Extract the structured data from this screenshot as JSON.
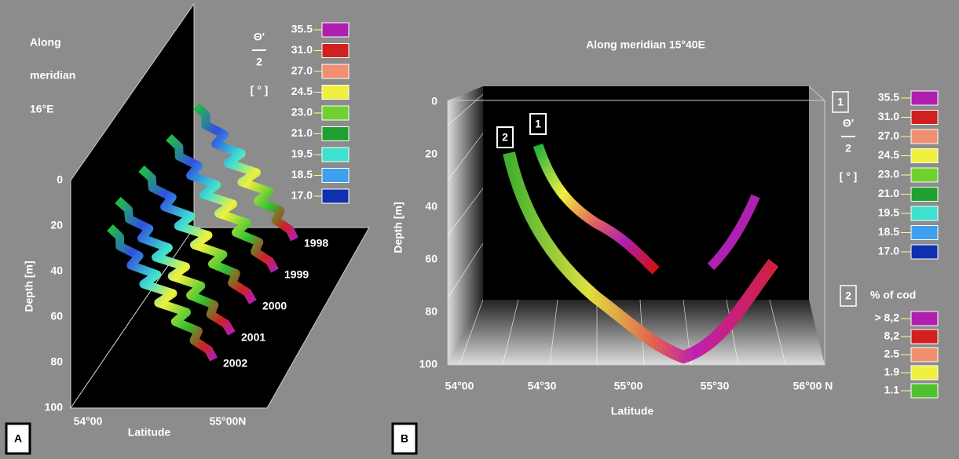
{
  "panel_a": {
    "label": "A",
    "title_lines": [
      "Along",
      "meridian",
      "16°E"
    ],
    "legend": {
      "header": [
        "Θ'",
        "2",
        "[ ° ]"
      ],
      "labels": [
        "35.5",
        "31.0",
        "27.0",
        "24.5",
        "23.0",
        "21.0",
        "19.5",
        "18.5",
        "17.0"
      ]
    },
    "y_axis": {
      "title": "Depth [m]",
      "ticks": [
        "0",
        "20",
        "40",
        "60",
        "80",
        "100"
      ]
    },
    "x_axis": {
      "title": "Latitude",
      "ticks": [
        "54°00",
        "55°00N"
      ]
    },
    "series_labels": [
      "1998",
      "1999",
      "2000",
      "2001",
      "2002"
    ]
  },
  "panel_b": {
    "label": "B",
    "title": "Along meridian 15°40E",
    "markers": [
      "1",
      "2"
    ],
    "y_axis": {
      "title": "Depth [m]",
      "ticks": [
        "0",
        "20",
        "40",
        "60",
        "80",
        "100"
      ]
    },
    "x_axis": {
      "title": "Latitude",
      "ticks": [
        "54°00",
        "54°30",
        "55°00",
        "55°30",
        "56°00 N"
      ]
    },
    "legend_1": {
      "key": "1",
      "header": [
        "Θ'",
        "2",
        "[ ° ]"
      ],
      "labels": [
        "35.5",
        "31.0",
        "27.0",
        "24.5",
        "23.0",
        "21.0",
        "19.5",
        "18.5",
        "17.0"
      ]
    },
    "legend_2": {
      "key": "2",
      "title": "% of cod",
      "labels": [
        "> 8,2",
        "8,2",
        "2.5",
        "1.9",
        "1.1"
      ]
    }
  }
}
